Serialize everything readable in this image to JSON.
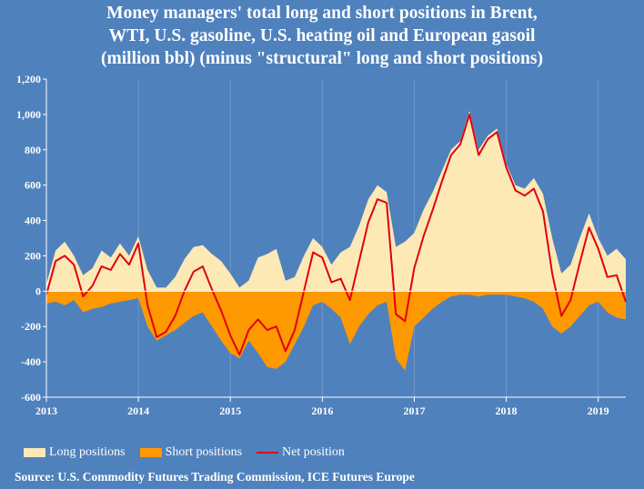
{
  "title": {
    "line1": "Money managers' total long and short positions in Brent,",
    "line2": "WTI, U.S. gasoline, U.S. heating oil and European gasoil",
    "line3": "(million bbl) (minus \"structural\" long and short positions)"
  },
  "legend": {
    "long": "Long positions",
    "short": "Short positions",
    "net": "Net position"
  },
  "source": "Source: U.S. Commodity Futures Trading Commission, ICE Futures Europe",
  "colors": {
    "background": "#4f81bd",
    "long": "#fde9b6",
    "short": "#ff9900",
    "net": "#e0000f",
    "grid": "#7396c6"
  },
  "chart_data": {
    "type": "area",
    "title": "Money managers' total long and short positions in Brent, WTI, U.S. gasoline, U.S. heating oil and European gasoil (million bbl) (minus \"structural\" long and short positions)",
    "xlabel": "",
    "ylabel": "",
    "xlim": [
      2013.0,
      2019.3
    ],
    "ylim": [
      -600,
      1200
    ],
    "yticks": [
      "-600",
      "-400",
      "-200",
      "0",
      "200",
      "400",
      "600",
      "800",
      "1,000",
      "1,200"
    ],
    "xticks": [
      "2013",
      "2014",
      "2015",
      "2016",
      "2017",
      "2018",
      "2019"
    ],
    "grid": "vertical at year boundaries",
    "legend_position": "bottom",
    "x": [
      2013.0,
      2013.1,
      2013.2,
      2013.3,
      2013.4,
      2013.5,
      2013.6,
      2013.7,
      2013.8,
      2013.9,
      2014.0,
      2014.1,
      2014.2,
      2014.3,
      2014.4,
      2014.5,
      2014.6,
      2014.7,
      2014.8,
      2014.9,
      2015.0,
      2015.1,
      2015.2,
      2015.3,
      2015.4,
      2015.5,
      2015.6,
      2015.7,
      2015.8,
      2015.9,
      2016.0,
      2016.1,
      2016.2,
      2016.3,
      2016.4,
      2016.5,
      2016.6,
      2016.7,
      2016.8,
      2016.9,
      2017.0,
      2017.1,
      2017.2,
      2017.3,
      2017.4,
      2017.5,
      2017.6,
      2017.7,
      2017.8,
      2017.9,
      2018.0,
      2018.1,
      2018.2,
      2018.3,
      2018.4,
      2018.5,
      2018.6,
      2018.7,
      2018.8,
      2018.9,
      2019.0,
      2019.1,
      2019.2,
      2019.3
    ],
    "series": [
      {
        "name": "Long positions",
        "values": [
          40,
          230,
          280,
          200,
          90,
          130,
          230,
          190,
          270,
          200,
          310,
          120,
          20,
          20,
          80,
          180,
          250,
          260,
          210,
          170,
          100,
          20,
          60,
          190,
          210,
          240,
          60,
          80,
          200,
          300,
          250,
          150,
          220,
          250,
          370,
          520,
          600,
          560,
          250,
          280,
          330,
          460,
          560,
          680,
          800,
          850,
          1020,
          800,
          880,
          920,
          720,
          600,
          580,
          640,
          550,
          300,
          100,
          150,
          300,
          440,
          300,
          200,
          240,
          180
        ]
      },
      {
        "name": "Short positions",
        "values": [
          -70,
          -60,
          -80,
          -50,
          -120,
          -100,
          -90,
          -70,
          -60,
          -50,
          -40,
          -200,
          -280,
          -250,
          -220,
          -180,
          -140,
          -120,
          -200,
          -280,
          -350,
          -380,
          -280,
          -350,
          -430,
          -440,
          -400,
          -300,
          -200,
          -80,
          -60,
          -100,
          -150,
          -300,
          -200,
          -130,
          -80,
          -60,
          -380,
          -450,
          -200,
          -150,
          -100,
          -60,
          -30,
          -20,
          -20,
          -30,
          -20,
          -20,
          -20,
          -30,
          -40,
          -60,
          -100,
          -200,
          -240,
          -200,
          -140,
          -80,
          -60,
          -120,
          -150,
          -160
        ]
      },
      {
        "name": "Net position",
        "values": [
          -20,
          170,
          200,
          150,
          -30,
          30,
          140,
          120,
          210,
          150,
          270,
          -80,
          -260,
          -230,
          -140,
          0,
          110,
          140,
          10,
          -110,
          -250,
          -360,
          -220,
          -160,
          -220,
          -200,
          -340,
          -220,
          0,
          220,
          190,
          50,
          70,
          -50,
          170,
          390,
          520,
          500,
          -130,
          -170,
          130,
          310,
          460,
          620,
          770,
          830,
          1000,
          770,
          860,
          900,
          700,
          570,
          540,
          580,
          450,
          100,
          -140,
          -50,
          160,
          360,
          240,
          80,
          90,
          -60
        ]
      }
    ]
  }
}
